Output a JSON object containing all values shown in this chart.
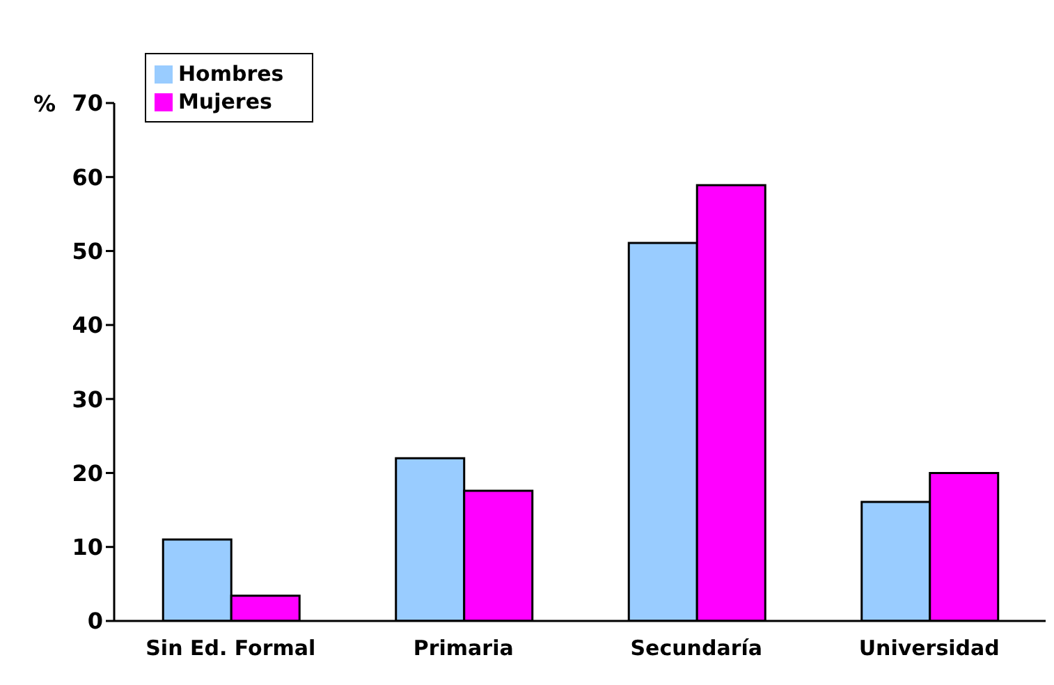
{
  "chart_data": {
    "type": "bar",
    "ylabel": "%",
    "categories": [
      "Sin Ed. Formal",
      "Primaria",
      "Secundaría",
      "Universidad"
    ],
    "series": [
      {
        "name": "Hombres",
        "color": "#99ccff",
        "values": [
          11,
          22,
          51.1,
          16.1
        ]
      },
      {
        "name": "Mujeres",
        "color": "#ff00ff",
        "values": [
          3.4,
          17.6,
          58.9,
          20
        ]
      }
    ],
    "ylim": [
      0,
      70
    ],
    "yticks": [
      0,
      10,
      20,
      30,
      40,
      50,
      60,
      70
    ],
    "grid": false,
    "legend": "top left"
  }
}
